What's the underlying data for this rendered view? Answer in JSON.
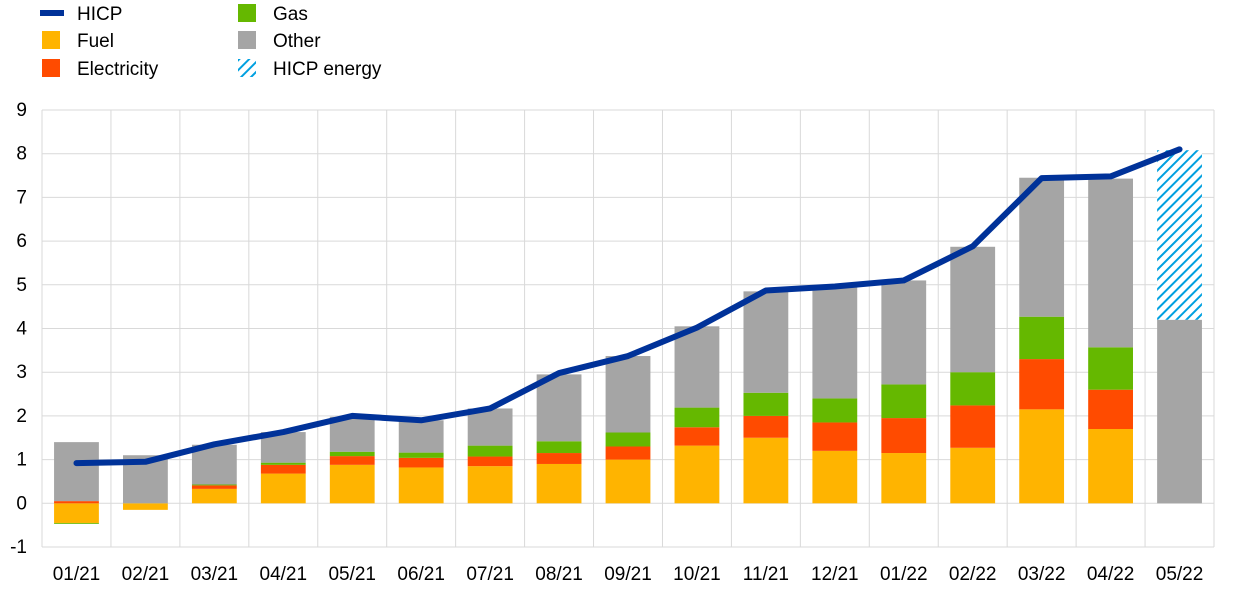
{
  "chart_data": {
    "type": "bar",
    "title": "",
    "xlabel": "",
    "ylabel": "",
    "ylim": [
      -1,
      9
    ],
    "yticks": [
      -1,
      0,
      1,
      2,
      3,
      4,
      5,
      6,
      7,
      8,
      9
    ],
    "grid": true,
    "stacked": true,
    "legend_position": "top-left",
    "categories": [
      "01/21",
      "02/21",
      "03/21",
      "04/21",
      "05/21",
      "06/21",
      "07/21",
      "08/21",
      "09/21",
      "10/21",
      "11/21",
      "12/21",
      "01/22",
      "02/22",
      "03/22",
      "04/22",
      "05/22"
    ],
    "series": [
      {
        "name": "Fuel",
        "kind": "bar",
        "color": "#FFB400",
        "values": [
          -0.45,
          -0.15,
          0.33,
          0.68,
          0.88,
          0.82,
          0.85,
          0.9,
          1.0,
          1.32,
          1.5,
          1.2,
          1.15,
          1.27,
          2.15,
          1.7,
          null
        ]
      },
      {
        "name": "Electricity",
        "kind": "bar",
        "color": "#FF4B00",
        "values": [
          0.05,
          0.0,
          0.08,
          0.2,
          0.2,
          0.22,
          0.22,
          0.25,
          0.3,
          0.42,
          0.5,
          0.65,
          0.8,
          0.97,
          1.15,
          0.9,
          null
        ]
      },
      {
        "name": "Gas",
        "kind": "bar",
        "color": "#65B800",
        "values": [
          -0.02,
          0.0,
          0.02,
          0.05,
          0.1,
          0.12,
          0.25,
          0.27,
          0.32,
          0.45,
          0.53,
          0.55,
          0.77,
          0.76,
          0.97,
          0.97,
          null
        ]
      },
      {
        "name": "Other",
        "kind": "bar",
        "color": "#A5A5A5",
        "values": [
          1.35,
          1.1,
          0.91,
          0.7,
          0.8,
          0.74,
          0.85,
          1.53,
          1.75,
          1.86,
          2.32,
          2.55,
          2.38,
          2.87,
          3.18,
          3.86,
          4.2
        ]
      },
      {
        "name": "HICP energy",
        "kind": "bar",
        "color": "#00A0E0",
        "pattern": "hatched",
        "values": [
          null,
          null,
          null,
          null,
          null,
          null,
          null,
          null,
          null,
          null,
          null,
          null,
          null,
          null,
          null,
          null,
          3.88
        ]
      },
      {
        "name": "HICP",
        "kind": "line",
        "color": "#003299",
        "values": [
          0.92,
          0.95,
          1.35,
          1.63,
          2.0,
          1.9,
          2.17,
          2.98,
          3.37,
          4.02,
          4.87,
          4.96,
          5.1,
          5.88,
          7.44,
          7.48,
          8.1
        ]
      }
    ]
  }
}
